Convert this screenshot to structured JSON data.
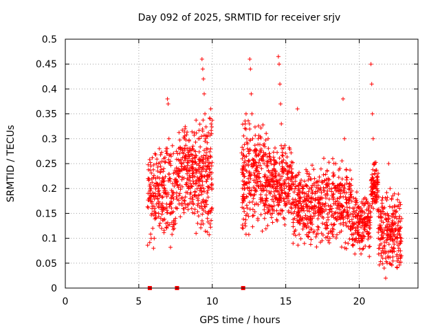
{
  "chart_data": {
    "type": "scatter",
    "title": "Day 092 of 2025, SRMTID for receiver srjv",
    "xlabel": "GPS time / hours",
    "ylabel": "SRMTID / TECUs",
    "xlim": [
      0,
      24
    ],
    "ylim": [
      0,
      0.5
    ],
    "xticks": [
      0,
      5,
      10,
      15,
      20
    ],
    "xtick_labels": [
      "0",
      "5",
      "10",
      "15",
      "20"
    ],
    "yticks": [
      0,
      0.05,
      0.1,
      0.15,
      0.2,
      0.25,
      0.3,
      0.35,
      0.4,
      0.45,
      0.5
    ],
    "ytick_labels": [
      "0",
      "0.05",
      "0.1",
      "0.15",
      "0.2",
      "0.25",
      "0.3",
      "0.35",
      "0.4",
      "0.45",
      "0.5"
    ],
    "grid": true,
    "marker_color": "#ff0000",
    "marker": "plus",
    "zero_marks_x": [
      5.75,
      7.6,
      12.1
    ],
    "series": [
      {
        "points": [
          [
            5.7,
            0.18
          ],
          [
            5.75,
            0.19
          ],
          [
            5.8,
            0.175
          ],
          [
            5.85,
            0.2
          ],
          [
            5.9,
            0.15
          ],
          [
            5.95,
            0.12
          ],
          [
            6.0,
            0.08
          ],
          [
            6.05,
            0.1
          ],
          [
            6.1,
            0.16
          ],
          [
            6.15,
            0.22
          ],
          [
            6.2,
            0.25
          ],
          [
            6.25,
            0.21
          ],
          [
            6.3,
            0.18
          ],
          [
            6.35,
            0.15
          ],
          [
            6.4,
            0.28
          ],
          [
            6.45,
            0.13
          ],
          [
            6.5,
            0.14
          ],
          [
            6.55,
            0.12
          ],
          [
            6.6,
            0.17
          ],
          [
            6.7,
            0.24
          ],
          [
            6.75,
            0.2
          ],
          [
            6.8,
            0.16
          ],
          [
            6.85,
            0.13
          ],
          [
            6.9,
            0.27
          ],
          [
            6.95,
            0.38
          ],
          [
            7.0,
            0.37
          ],
          [
            7.05,
            0.3
          ],
          [
            7.1,
            0.25
          ],
          [
            7.15,
            0.22
          ],
          [
            7.2,
            0.18
          ],
          [
            7.3,
            0.21
          ],
          [
            7.4,
            0.12
          ],
          [
            7.5,
            0.14
          ],
          [
            7.6,
            0.16
          ],
          [
            7.7,
            0.23
          ],
          [
            7.8,
            0.19
          ],
          [
            7.9,
            0.25
          ],
          [
            8.0,
            0.28
          ],
          [
            8.05,
            0.27
          ],
          [
            8.1,
            0.3
          ],
          [
            8.15,
            0.32
          ],
          [
            8.2,
            0.26
          ],
          [
            8.3,
            0.22
          ],
          [
            8.4,
            0.2
          ],
          [
            8.5,
            0.18
          ],
          [
            8.6,
            0.16
          ],
          [
            8.7,
            0.17
          ],
          [
            8.8,
            0.15
          ],
          [
            8.9,
            0.11
          ],
          [
            9.0,
            0.13
          ],
          [
            9.05,
            0.3
          ],
          [
            9.1,
            0.25
          ],
          [
            9.15,
            0.22
          ],
          [
            9.2,
            0.2
          ],
          [
            9.3,
            0.46
          ],
          [
            9.35,
            0.44
          ],
          [
            9.4,
            0.42
          ],
          [
            9.45,
            0.39
          ],
          [
            9.5,
            0.35
          ],
          [
            9.55,
            0.3
          ],
          [
            9.6,
            0.28
          ],
          [
            9.7,
            0.26
          ],
          [
            9.8,
            0.24
          ],
          [
            9.85,
            0.34
          ],
          [
            9.9,
            0.36
          ],
          [
            9.95,
            0.31
          ],
          [
            12.1,
            0.12
          ],
          [
            12.15,
            0.16
          ],
          [
            12.2,
            0.2
          ],
          [
            12.25,
            0.33
          ],
          [
            12.3,
            0.35
          ],
          [
            12.35,
            0.3
          ],
          [
            12.4,
            0.28
          ],
          [
            12.45,
            0.22
          ],
          [
            12.5,
            0.27
          ],
          [
            12.55,
            0.46
          ],
          [
            12.6,
            0.44
          ],
          [
            12.65,
            0.39
          ],
          [
            12.7,
            0.35
          ],
          [
            12.75,
            0.3
          ],
          [
            12.8,
            0.25
          ],
          [
            12.9,
            0.2
          ],
          [
            13.0,
            0.17
          ],
          [
            13.1,
            0.14
          ],
          [
            13.2,
            0.23
          ],
          [
            13.3,
            0.2
          ],
          [
            13.4,
            0.18
          ],
          [
            13.5,
            0.17
          ],
          [
            13.6,
            0.15
          ],
          [
            13.8,
            0.3
          ],
          [
            13.9,
            0.27
          ],
          [
            14.0,
            0.25
          ],
          [
            14.1,
            0.22
          ],
          [
            14.2,
            0.24
          ],
          [
            14.3,
            0.2
          ],
          [
            14.4,
            0.18
          ],
          [
            14.5,
            0.465
          ],
          [
            14.55,
            0.45
          ],
          [
            14.6,
            0.41
          ],
          [
            14.65,
            0.37
          ],
          [
            14.7,
            0.33
          ],
          [
            14.75,
            0.28
          ],
          [
            14.8,
            0.24
          ],
          [
            14.9,
            0.2
          ],
          [
            15.0,
            0.19
          ],
          [
            15.1,
            0.18
          ],
          [
            15.2,
            0.22
          ],
          [
            15.4,
            0.16
          ],
          [
            15.5,
            0.15
          ],
          [
            15.6,
            0.14
          ],
          [
            15.8,
            0.36
          ],
          [
            15.9,
            0.2
          ],
          [
            16.0,
            0.17
          ],
          [
            16.2,
            0.16
          ],
          [
            16.3,
            0.14
          ],
          [
            16.5,
            0.13
          ],
          [
            16.6,
            0.2
          ],
          [
            16.8,
            0.19
          ],
          [
            17.0,
            0.15
          ],
          [
            17.2,
            0.2
          ],
          [
            17.4,
            0.16
          ],
          [
            17.5,
            0.13
          ],
          [
            17.7,
            0.12
          ],
          [
            17.9,
            0.11
          ],
          [
            18.0,
            0.1
          ],
          [
            18.2,
            0.26
          ],
          [
            18.4,
            0.25
          ],
          [
            18.5,
            0.2
          ],
          [
            18.6,
            0.17
          ],
          [
            18.8,
            0.15
          ],
          [
            18.9,
            0.38
          ],
          [
            19.0,
            0.3
          ],
          [
            19.2,
            0.14
          ],
          [
            19.4,
            0.12
          ],
          [
            19.6,
            0.13
          ],
          [
            19.8,
            0.1
          ],
          [
            20.0,
            0.16
          ],
          [
            20.2,
            0.17
          ],
          [
            20.4,
            0.13
          ],
          [
            20.6,
            0.11
          ],
          [
            20.8,
            0.45
          ],
          [
            20.85,
            0.41
          ],
          [
            20.9,
            0.35
          ],
          [
            20.95,
            0.3
          ],
          [
            21.0,
            0.25
          ],
          [
            21.05,
            0.23
          ],
          [
            21.1,
            0.21
          ],
          [
            21.15,
            0.2
          ],
          [
            21.3,
            0.1
          ],
          [
            21.4,
            0.08
          ],
          [
            21.5,
            0.12
          ],
          [
            21.6,
            0.06
          ],
          [
            21.7,
            0.04
          ],
          [
            21.8,
            0.02
          ],
          [
            21.9,
            0.05
          ],
          [
            22.0,
            0.25
          ],
          [
            22.1,
            0.2
          ],
          [
            22.2,
            0.18
          ],
          [
            22.3,
            0.15
          ],
          [
            22.4,
            0.13
          ],
          [
            22.5,
            0.12
          ],
          [
            22.6,
            0.1
          ],
          [
            22.7,
            0.08
          ],
          [
            22.8,
            0.06
          ]
        ]
      }
    ],
    "clusters": [
      {
        "x": [
          5.6,
          7.6
        ],
        "y": [
          0.08,
          0.3
        ],
        "n": 220,
        "seed": 11
      },
      {
        "x": [
          7.6,
          8.9
        ],
        "y": [
          0.14,
          0.33
        ],
        "n": 180,
        "seed": 23
      },
      {
        "x": [
          8.9,
          10.0
        ],
        "y": [
          0.1,
          0.36
        ],
        "n": 170,
        "seed": 37
      },
      {
        "x": [
          12.0,
          13.8
        ],
        "y": [
          0.1,
          0.35
        ],
        "n": 260,
        "seed": 41
      },
      {
        "x": [
          13.8,
          15.5
        ],
        "y": [
          0.12,
          0.3
        ],
        "n": 240,
        "seed": 53
      },
      {
        "x": [
          15.5,
          17.5
        ],
        "y": [
          0.08,
          0.25
        ],
        "n": 260,
        "seed": 61
      },
      {
        "x": [
          17.5,
          19.5
        ],
        "y": [
          0.07,
          0.27
        ],
        "n": 240,
        "seed": 71
      },
      {
        "x": [
          19.5,
          20.8
        ],
        "y": [
          0.06,
          0.2
        ],
        "n": 170,
        "seed": 83
      },
      {
        "x": [
          20.8,
          21.3
        ],
        "y": [
          0.15,
          0.26
        ],
        "n": 90,
        "seed": 89
      },
      {
        "x": [
          21.3,
          22.9
        ],
        "y": [
          0.03,
          0.2
        ],
        "n": 220,
        "seed": 97
      }
    ]
  }
}
